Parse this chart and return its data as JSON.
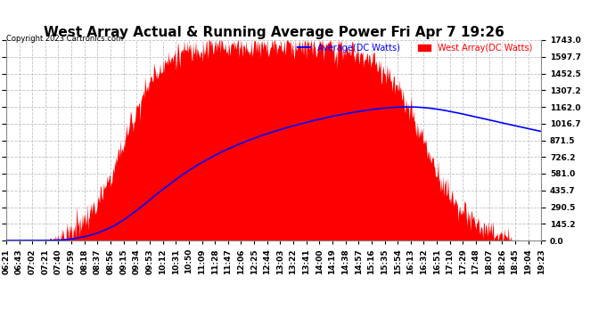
{
  "title": "West Array Actual & Running Average Power Fri Apr 7 19:26",
  "copyright": "Copyright 2023 Cartronics.com",
  "legend_avg": "Average(DC Watts)",
  "legend_west": "West Array(DC Watts)",
  "legend_avg_color": "blue",
  "legend_west_color": "red",
  "ymin": 0.0,
  "ymax": 1743.0,
  "yticks": [
    0.0,
    145.2,
    290.5,
    435.7,
    581.0,
    726.2,
    871.5,
    1016.7,
    1162.0,
    1307.2,
    1452.5,
    1597.7,
    1743.0
  ],
  "ytick_labels": [
    "0.0",
    "145.2",
    "290.5",
    "435.7",
    "581.0",
    "726.2",
    "871.5",
    "1016.7",
    "1162.0",
    "1307.2",
    "1452.5",
    "1597.7",
    "1743.0"
  ],
  "xtick_labels": [
    "06:21",
    "06:43",
    "07:02",
    "07:21",
    "07:40",
    "07:59",
    "08:18",
    "08:37",
    "08:56",
    "09:15",
    "09:34",
    "09:53",
    "10:12",
    "10:31",
    "10:50",
    "11:09",
    "11:28",
    "11:47",
    "12:06",
    "12:25",
    "12:44",
    "13:03",
    "13:22",
    "13:41",
    "14:00",
    "14:19",
    "14:38",
    "14:57",
    "15:16",
    "15:35",
    "15:54",
    "16:13",
    "16:32",
    "16:51",
    "17:10",
    "17:29",
    "17:48",
    "18:07",
    "18:26",
    "18:45",
    "19:04",
    "19:23"
  ],
  "background_color": "#ffffff",
  "plot_bg_color": "#ffffff",
  "grid_color": "#bbbbbb",
  "title_fontsize": 11,
  "tick_fontsize": 6.5,
  "bar_color": "red",
  "avg_color": "blue",
  "fill_alpha": 1.0
}
